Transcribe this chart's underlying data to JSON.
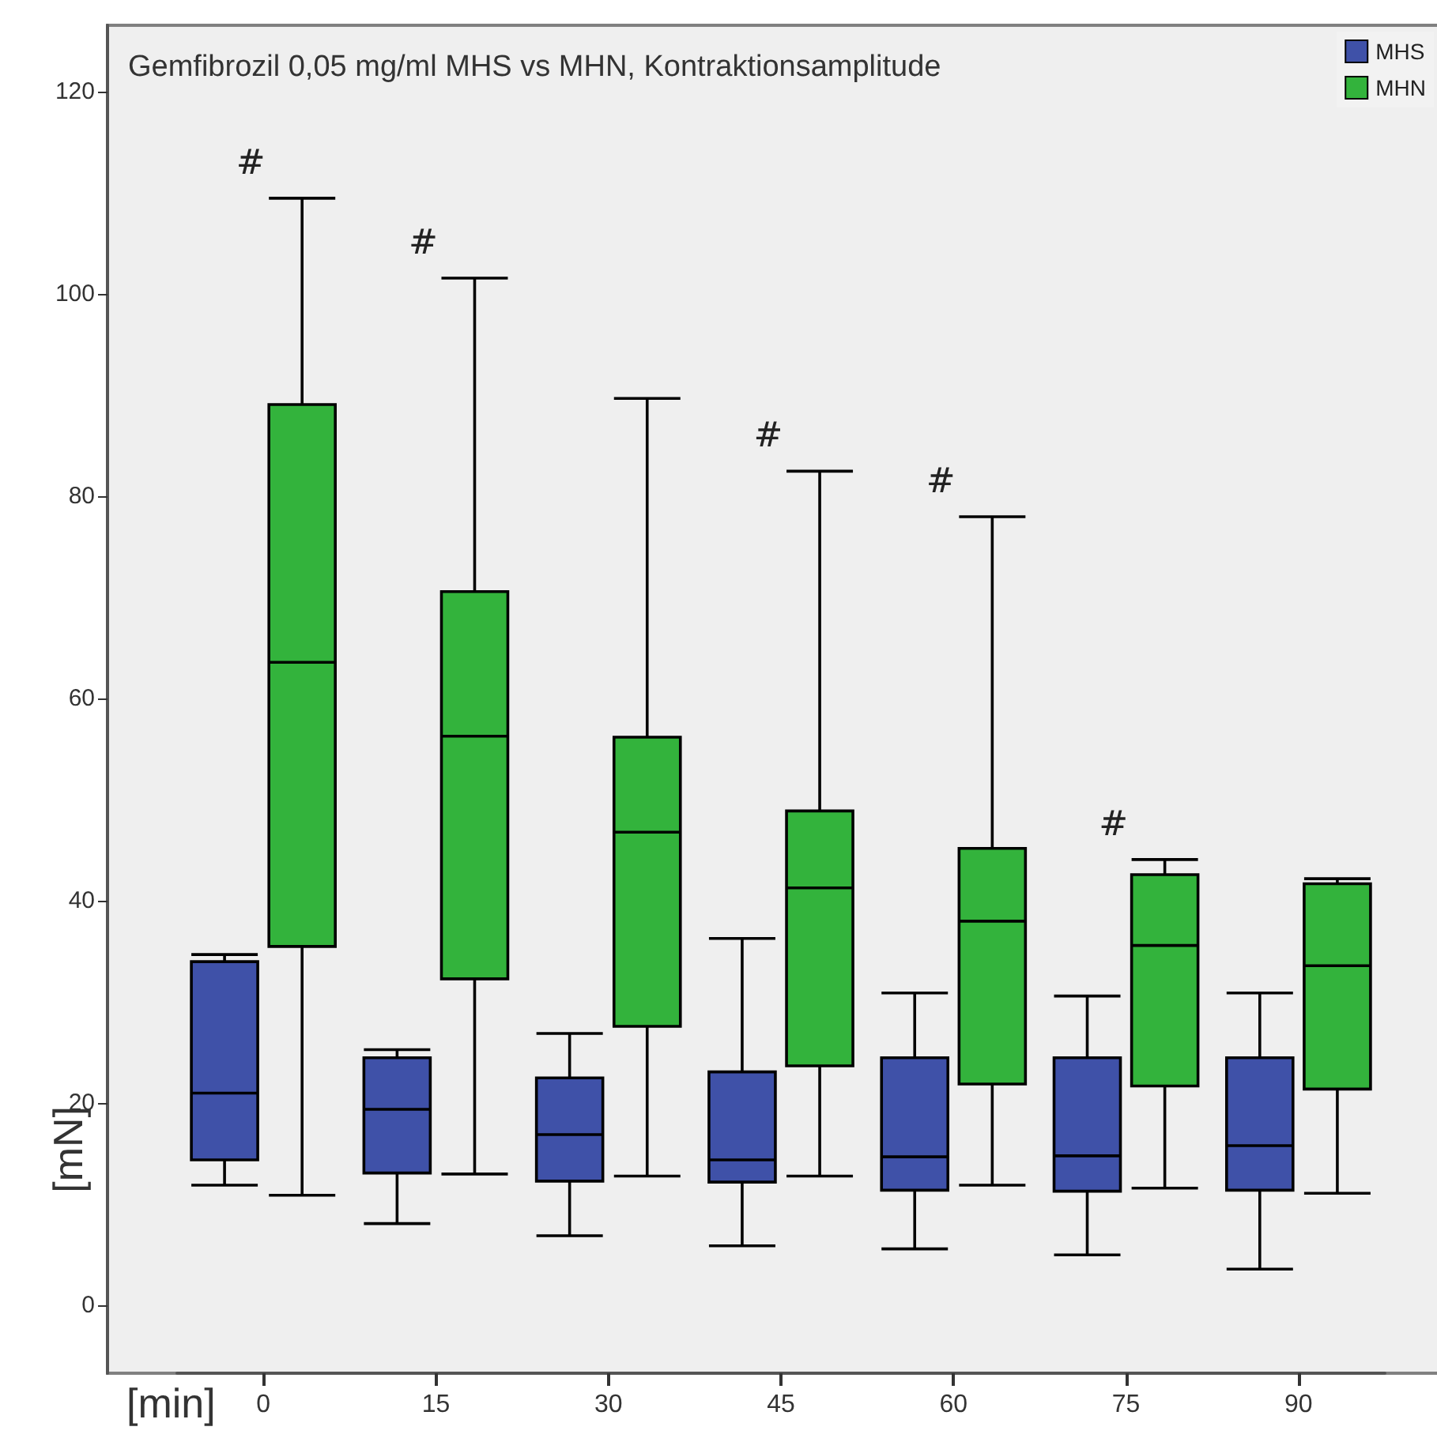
{
  "chart_data": {
    "type": "box",
    "title": "Gemfibrozil 0,05 mg/ml MHS vs MHN, Kontraktionsamplitude",
    "xlabel": "[min]",
    "ylabel": "[mN]",
    "categories": [
      "0",
      "15",
      "30",
      "45",
      "60",
      "75",
      "90"
    ],
    "series": [
      {
        "name": "MHS",
        "color": "#3f51a8",
        "boxes": [
          {
            "low": 11.9,
            "q1": 14.4,
            "median": 21.0,
            "q3": 34.0,
            "high": 34.7
          },
          {
            "low": 8.1,
            "q1": 13.1,
            "median": 19.4,
            "q3": 24.5,
            "high": 25.3
          },
          {
            "low": 6.9,
            "q1": 12.3,
            "median": 16.9,
            "q3": 22.5,
            "high": 26.9
          },
          {
            "low": 5.9,
            "q1": 12.2,
            "median": 14.4,
            "q3": 23.1,
            "high": 36.3
          },
          {
            "low": 5.6,
            "q1": 11.4,
            "median": 14.7,
            "q3": 24.5,
            "high": 30.9
          },
          {
            "low": 5.0,
            "q1": 11.3,
            "median": 14.8,
            "q3": 24.5,
            "high": 30.6
          },
          {
            "low": 3.6,
            "q1": 11.4,
            "median": 15.8,
            "q3": 24.5,
            "high": 30.9
          }
        ]
      },
      {
        "name": "MHN",
        "color": "#33b33c",
        "boxes": [
          {
            "low": 10.9,
            "q1": 35.5,
            "median": 63.6,
            "q3": 89.1,
            "high": 109.5
          },
          {
            "low": 13.0,
            "q1": 32.3,
            "median": 56.3,
            "q3": 70.6,
            "high": 101.6
          },
          {
            "low": 12.8,
            "q1": 27.6,
            "median": 46.8,
            "q3": 56.2,
            "high": 89.7
          },
          {
            "low": 12.8,
            "q1": 23.7,
            "median": 41.3,
            "q3": 48.9,
            "high": 82.5
          },
          {
            "low": 11.9,
            "q1": 21.9,
            "median": 38.0,
            "q3": 45.2,
            "high": 78.0
          },
          {
            "low": 11.6,
            "q1": 21.7,
            "median": 35.6,
            "q3": 42.6,
            "high": 44.1
          },
          {
            "low": 11.1,
            "q1": 21.4,
            "median": 33.6,
            "q3": 41.7,
            "high": 42.2
          }
        ]
      }
    ],
    "annotations": [
      {
        "text": "#",
        "x": "0",
        "y": 109.5
      },
      {
        "text": "#",
        "x": "15",
        "y": 101.6
      },
      {
        "text": "#",
        "x": "45",
        "y": 82.5
      },
      {
        "text": "#",
        "x": "60",
        "y": 78.0
      },
      {
        "text": "#",
        "x": "75",
        "y": 44.1
      }
    ],
    "ylim": [
      -6.7,
      126.6
    ],
    "yticks": [
      0,
      20,
      40,
      60,
      80,
      100,
      120
    ],
    "grid": false,
    "legend": "top right"
  }
}
